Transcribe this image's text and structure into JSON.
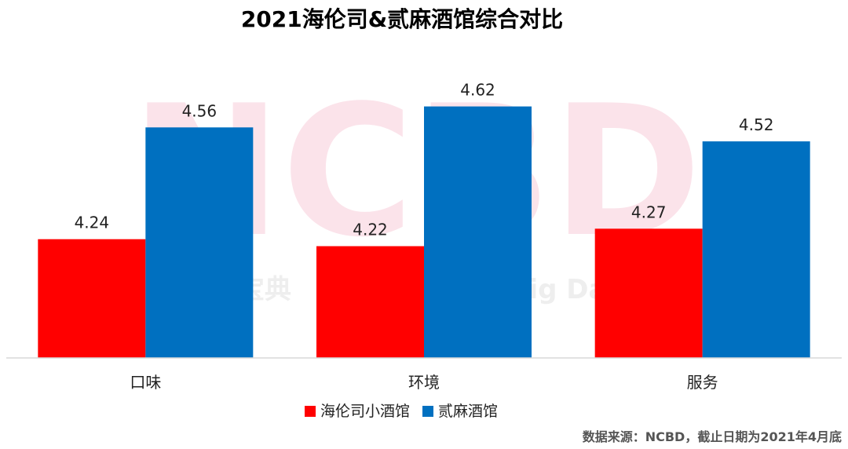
{
  "chart_data": {
    "type": "bar",
    "title": "2021海伦司&贰麻酒馆综合对比",
    "categories": [
      "口味",
      "环境",
      "服务"
    ],
    "series": [
      {
        "name": "海伦司小酒馆",
        "color": "#ff0000",
        "values": [
          4.24,
          4.22,
          4.27
        ]
      },
      {
        "name": "贰麻酒馆",
        "color": "#0070c0",
        "values": [
          4.56,
          4.62,
          4.52
        ]
      }
    ],
    "value_labels": [
      [
        "4.24",
        "4.22",
        "4.27"
      ],
      [
        "4.56",
        "4.62",
        "4.52"
      ]
    ],
    "xlabel": "",
    "ylabel": "",
    "ylim": [
      3.9,
      4.7
    ],
    "grid": false,
    "legend_position": "bottom"
  },
  "watermark": {
    "logo": "NCBD",
    "text": "餐宝典",
    "text_en": "Big Da"
  },
  "source_note": "数据来源：NCBD，截止日期为2021年4月底"
}
